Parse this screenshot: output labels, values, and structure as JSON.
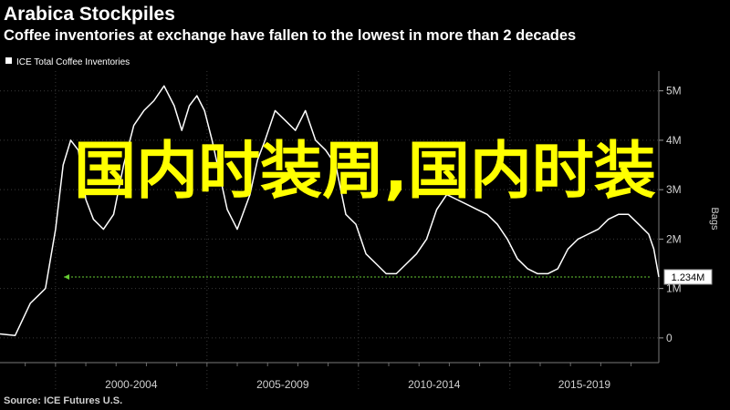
{
  "header": {
    "title": "Arabica Stockpiles",
    "subtitle": "Coffee inventories at exchange have fallen to the lowest in more than 2 decades"
  },
  "footer": {
    "source": "Source: ICE Futures U.S."
  },
  "overlay_text": "国内时装周,国内时装",
  "colors": {
    "background": "#000000",
    "line": "#ffffff",
    "grid": "#3a3a3a",
    "marker": "#66cc33",
    "overlay": "#ffff00"
  },
  "chart_data": {
    "type": "line",
    "title": "Arabica Stockpiles",
    "subtitle": "Coffee inventories at exchange have fallen to the lowest in more than 2 decades",
    "xlabel": "",
    "ylabel": "Bags",
    "legend": {
      "placement": "top-left",
      "entries": [
        "ICE Total Coffee Inventories"
      ]
    },
    "x_tick_labels": [
      "2000-2004",
      "2005-2009",
      "2010-2014",
      "2015-2019"
    ],
    "y_ticks": [
      0,
      1,
      2,
      3,
      4,
      5
    ],
    "y_tick_labels": [
      "0",
      "1M",
      "2M",
      "3M",
      "4M",
      "5M"
    ],
    "xlim": [
      "1998-03",
      "2019-12"
    ],
    "ylim": [
      -0.5,
      5.4
    ],
    "grid": true,
    "last_value": 1.234,
    "last_value_label": "1.234M",
    "series": [
      {
        "name": "ICE Total Coffee Inventories",
        "x": [
          "1998-03",
          "1998-09",
          "1999-03",
          "1999-06",
          "1999-09",
          "2000-01",
          "2000-04",
          "2000-07",
          "2000-10",
          "2001-01",
          "2001-04",
          "2001-08",
          "2001-12",
          "2002-04",
          "2002-08",
          "2002-12",
          "2003-04",
          "2003-08",
          "2003-12",
          "2004-03",
          "2004-06",
          "2004-09",
          "2004-12",
          "2005-03",
          "2005-06",
          "2005-09",
          "2006-01",
          "2006-06",
          "2006-09",
          "2006-12",
          "2007-04",
          "2007-08",
          "2007-12",
          "2008-04",
          "2008-08",
          "2008-12",
          "2009-04",
          "2009-08",
          "2009-12",
          "2010-04",
          "2010-08",
          "2010-12",
          "2011-04",
          "2011-08",
          "2011-12",
          "2012-04",
          "2012-08",
          "2012-12",
          "2013-04",
          "2013-08",
          "2013-12",
          "2014-04",
          "2014-08",
          "2014-12",
          "2015-04",
          "2015-08",
          "2015-12",
          "2016-04",
          "2016-08",
          "2016-12",
          "2017-04",
          "2017-08",
          "2017-12",
          "2018-04",
          "2018-08",
          "2018-12",
          "2019-04",
          "2019-08",
          "2019-10",
          "2019-12"
        ],
        "values": [
          0.08,
          0.05,
          0.7,
          0.85,
          1.0,
          2.2,
          3.5,
          4.0,
          3.8,
          2.8,
          2.4,
          2.2,
          2.5,
          3.5,
          4.3,
          4.6,
          4.8,
          5.1,
          4.7,
          4.2,
          4.7,
          4.9,
          4.6,
          4.0,
          3.3,
          2.6,
          2.2,
          2.9,
          3.6,
          4.0,
          4.6,
          4.4,
          4.2,
          4.6,
          4.0,
          3.8,
          3.5,
          2.5,
          2.3,
          1.7,
          1.5,
          1.3,
          1.3,
          1.5,
          1.7,
          2.0,
          2.6,
          2.9,
          2.8,
          2.7,
          2.6,
          2.5,
          2.3,
          2.0,
          1.6,
          1.4,
          1.3,
          1.3,
          1.4,
          1.8,
          2.0,
          2.1,
          2.2,
          2.4,
          2.5,
          2.5,
          2.3,
          2.1,
          1.8,
          1.234
        ]
      }
    ]
  }
}
